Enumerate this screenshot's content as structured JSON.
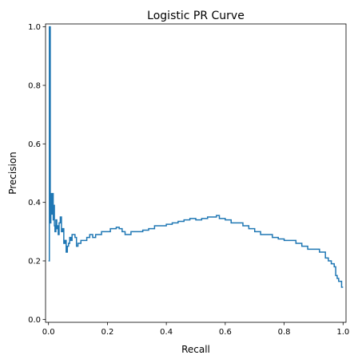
{
  "chart_data": {
    "type": "line",
    "title": "Logistic PR Curve",
    "xlabel": "Recall",
    "ylabel": "Precision",
    "xlim": [
      -0.01,
      1.01
    ],
    "ylim": [
      -0.01,
      1.01
    ],
    "xticks": [
      0.0,
      0.2,
      0.4,
      0.6,
      0.8,
      1.0
    ],
    "xtick_labels": [
      "0.0",
      "0.2",
      "0.4",
      "0.6",
      "0.8",
      "1.0"
    ],
    "yticks": [
      0.0,
      0.2,
      0.4,
      0.6,
      0.8,
      1.0
    ],
    "ytick_labels": [
      "0.0",
      "0.2",
      "0.4",
      "0.6",
      "0.8",
      "1.0"
    ],
    "grid": false,
    "step": "post",
    "series": [
      {
        "color": "#1f77b4",
        "x": [
          0.0,
          0.003,
          0.003,
          0.006,
          0.006,
          0.008,
          0.01,
          0.013,
          0.016,
          0.018,
          0.02,
          0.022,
          0.025,
          0.028,
          0.03,
          0.033,
          0.036,
          0.04,
          0.044,
          0.048,
          0.052,
          0.056,
          0.06,
          0.064,
          0.068,
          0.072,
          0.076,
          0.08,
          0.085,
          0.09,
          0.095,
          0.1,
          0.11,
          0.12,
          0.13,
          0.14,
          0.15,
          0.16,
          0.17,
          0.18,
          0.19,
          0.2,
          0.21,
          0.22,
          0.23,
          0.24,
          0.25,
          0.26,
          0.27,
          0.28,
          0.3,
          0.32,
          0.34,
          0.36,
          0.38,
          0.4,
          0.42,
          0.44,
          0.46,
          0.48,
          0.5,
          0.52,
          0.54,
          0.56,
          0.57,
          0.58,
          0.6,
          0.62,
          0.64,
          0.66,
          0.68,
          0.7,
          0.72,
          0.74,
          0.76,
          0.78,
          0.8,
          0.82,
          0.84,
          0.86,
          0.88,
          0.9,
          0.92,
          0.93,
          0.94,
          0.95,
          0.96,
          0.97,
          0.975,
          0.98,
          0.985,
          0.99,
          0.995,
          1.0
        ],
        "y": [
          0.2,
          0.2,
          1.0,
          1.0,
          0.33,
          0.43,
          0.36,
          0.43,
          0.34,
          0.39,
          0.32,
          0.3,
          0.34,
          0.31,
          0.32,
          0.29,
          0.33,
          0.35,
          0.3,
          0.31,
          0.26,
          0.27,
          0.23,
          0.25,
          0.26,
          0.28,
          0.27,
          0.29,
          0.29,
          0.28,
          0.25,
          0.26,
          0.27,
          0.27,
          0.28,
          0.29,
          0.28,
          0.29,
          0.29,
          0.3,
          0.3,
          0.3,
          0.31,
          0.31,
          0.315,
          0.31,
          0.3,
          0.29,
          0.29,
          0.3,
          0.3,
          0.305,
          0.31,
          0.32,
          0.32,
          0.325,
          0.33,
          0.335,
          0.34,
          0.345,
          0.34,
          0.345,
          0.35,
          0.35,
          0.355,
          0.345,
          0.34,
          0.33,
          0.33,
          0.32,
          0.31,
          0.3,
          0.29,
          0.29,
          0.28,
          0.275,
          0.27,
          0.27,
          0.26,
          0.25,
          0.24,
          0.24,
          0.23,
          0.23,
          0.21,
          0.2,
          0.19,
          0.18,
          0.15,
          0.14,
          0.13,
          0.13,
          0.11,
          0.11
        ]
      }
    ]
  }
}
